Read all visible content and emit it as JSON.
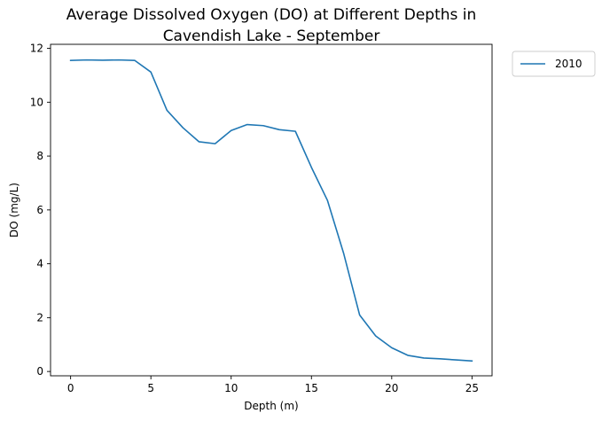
{
  "chart_data": {
    "type": "line",
    "title_lines": [
      "Average Dissolved Oxygen (DO) at Different Depths in",
      "Cavendish Lake - September"
    ],
    "xlabel": "Depth (m)",
    "ylabel": "DO (mg/L)",
    "xlim": [
      -1.25,
      26.25
    ],
    "ylim": [
      -0.16,
      12.15
    ],
    "xticks": [
      0,
      5,
      10,
      15,
      20,
      25
    ],
    "yticks": [
      0,
      2,
      4,
      6,
      8,
      10,
      12
    ],
    "grid": false,
    "legend_position": "outside-upper-right",
    "series": [
      {
        "name": "2010",
        "color": "#1f77b4",
        "x": [
          0,
          1,
          2,
          3,
          4,
          5,
          6,
          7,
          8,
          9,
          10,
          11,
          12,
          13,
          14,
          15,
          16,
          17,
          18,
          19,
          20,
          21,
          22,
          23,
          24,
          25
        ],
        "y": [
          11.55,
          11.57,
          11.56,
          11.57,
          11.55,
          11.12,
          9.7,
          9.05,
          8.53,
          8.46,
          8.95,
          9.17,
          9.13,
          8.98,
          8.92,
          7.58,
          6.35,
          4.4,
          2.1,
          1.32,
          0.88,
          0.6,
          0.5,
          0.47,
          0.43,
          0.39
        ]
      }
    ]
  }
}
